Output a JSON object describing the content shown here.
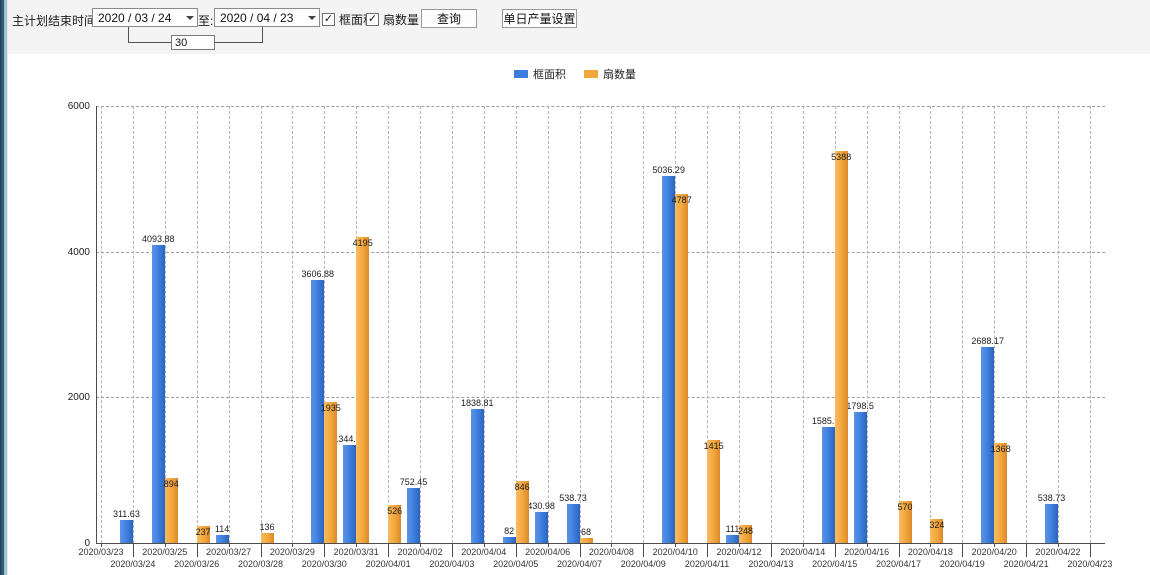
{
  "toolbar": {
    "end_time_label": "主计划结束时间:",
    "date_from": "2020 / 03 / 24",
    "to_label": "至:",
    "date_to": "2020 / 04 / 23",
    "days_between": "30",
    "checkboxes": [
      {
        "label": "框面积",
        "checked": true,
        "check_glyph": "✓"
      },
      {
        "label": "扇数量",
        "checked": true,
        "check_glyph": "✓"
      }
    ],
    "query_button": "查询",
    "daily_output_button": "单日产量设置"
  },
  "legend": {
    "items": [
      {
        "label": "框面积",
        "color": "#3c7ddc"
      },
      {
        "label": "扇数量",
        "color": "#f2a63c"
      }
    ]
  },
  "colors": {
    "series_blue": "#3c7ddc",
    "series_orange": "#f2a63c",
    "grid": "#ababab",
    "axis": "#4d4d4d"
  },
  "chart_data": {
    "type": "bar",
    "title": "",
    "xlabel": "",
    "ylabel": "",
    "ylim": [
      0,
      6000
    ],
    "yticks": [
      0,
      2000,
      4000,
      6000
    ],
    "grid": true,
    "legend_position": "top",
    "categories": [
      "2020/03/23",
      "2020/03/24",
      "2020/03/25",
      "2020/03/26",
      "2020/03/27",
      "2020/03/28",
      "2020/03/29",
      "2020/03/30",
      "2020/03/31",
      "2020/04/01",
      "2020/04/02",
      "2020/04/03",
      "2020/04/04",
      "2020/04/05",
      "2020/04/06",
      "2020/04/07",
      "2020/04/08",
      "2020/04/09",
      "2020/04/10",
      "2020/04/11",
      "2020/04/12",
      "2020/04/13",
      "2020/04/14",
      "2020/04/15",
      "2020/04/16",
      "2020/04/17",
      "2020/04/18",
      "2020/04/19",
      "2020/04/20",
      "2020/04/21",
      "2020/04/22",
      "2020/04/23"
    ],
    "series": [
      {
        "name": "框面积",
        "color": "#3c7ddc",
        "values": [
          null,
          311.63,
          4093.88,
          null,
          114,
          null,
          null,
          3606.88,
          1344.95,
          null,
          752.45,
          null,
          1838.81,
          82,
          430.98,
          538.73,
          null,
          null,
          5036.29,
          null,
          111,
          null,
          null,
          1585.96,
          1798.5,
          null,
          null,
          null,
          2688.17,
          null,
          538.73,
          null
        ]
      },
      {
        "name": "扇数量",
        "color": "#f2a63c",
        "values": [
          null,
          null,
          894,
          237,
          null,
          136,
          null,
          1935,
          4195,
          526,
          null,
          null,
          null,
          846,
          null,
          68,
          null,
          null,
          4787,
          1415,
          248,
          null,
          null,
          5388,
          null,
          570,
          324,
          null,
          1368,
          null,
          null,
          null
        ]
      }
    ]
  }
}
